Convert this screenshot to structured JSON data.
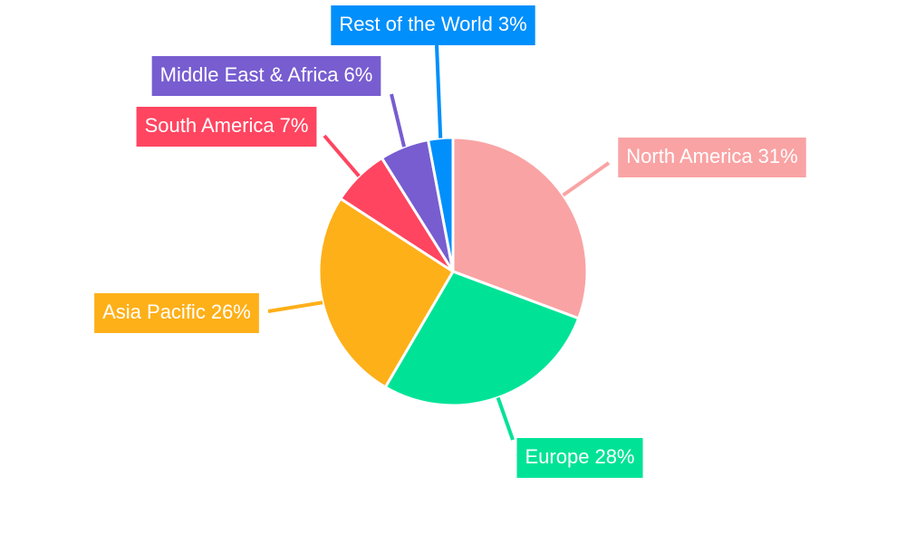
{
  "chart_data": {
    "type": "pie",
    "categories": [
      "North America",
      "Europe",
      "Asia Pacific",
      "South America",
      "Middle East & Africa",
      "Rest of the World"
    ],
    "values": [
      31,
      28,
      26,
      7,
      6,
      3
    ],
    "value_labels": [
      "31%",
      "28%",
      "26%",
      "7%",
      "6%",
      "3%"
    ],
    "colors": [
      "#f9a3a4",
      "#00e396",
      "#feb019",
      "#ff4560",
      "#775dd0",
      "#008ffb"
    ]
  }
}
